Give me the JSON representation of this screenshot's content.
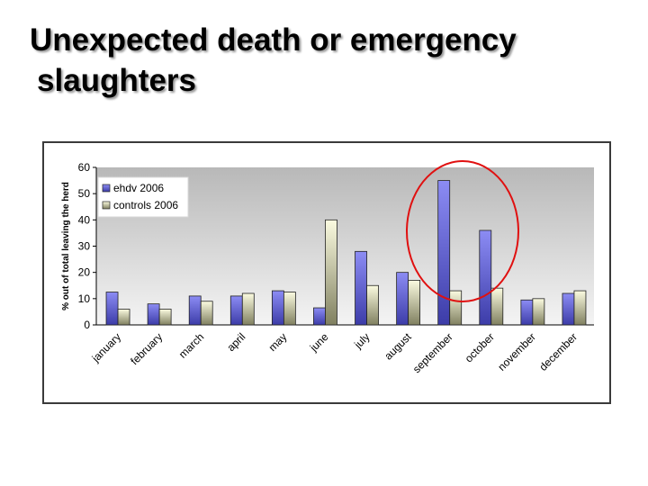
{
  "slide": {
    "title_line1": "Unexpected death or emergency",
    "title_line2": "slaughters"
  },
  "chart_data": {
    "type": "bar",
    "categories": [
      "january",
      "february",
      "march",
      "april",
      "may",
      "june",
      "july",
      "august",
      "september",
      "october",
      "november",
      "december"
    ],
    "series": [
      {
        "name": "ehdv 2006",
        "values": [
          12.5,
          8,
          11,
          11,
          13,
          6.5,
          28,
          20,
          55,
          36,
          9.5,
          12
        ]
      },
      {
        "name": "controls 2006",
        "values": [
          6,
          6,
          9,
          12,
          12.5,
          40,
          15,
          17,
          13,
          14,
          10,
          13
        ]
      }
    ],
    "ylabel": "% out of total leaving the herd",
    "xlabel": "",
    "ylim": [
      0,
      60
    ],
    "yticks": [
      0,
      10,
      20,
      30,
      40,
      50,
      60
    ],
    "legend_position": "top-left",
    "grid": false,
    "colors": {
      "ehdv 2006": "#8080ee",
      "controls 2006": "#f0f0c8",
      "plot_background": "#c0c0c0",
      "annotation": "#e01010"
    },
    "annotation": "red ellipse around september and october ehdv bars"
  }
}
